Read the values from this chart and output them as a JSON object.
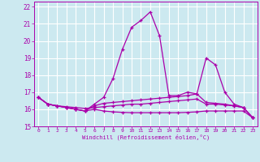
{
  "xlabel": "Windchill (Refroidissement éolien,°C)",
  "xlim": [
    -0.5,
    23.5
  ],
  "ylim": [
    15,
    22.3
  ],
  "xticks": [
    0,
    1,
    2,
    3,
    4,
    5,
    6,
    7,
    8,
    9,
    10,
    11,
    12,
    13,
    14,
    15,
    16,
    17,
    18,
    19,
    20,
    21,
    22,
    23
  ],
  "yticks": [
    15,
    16,
    17,
    18,
    19,
    20,
    21,
    22
  ],
  "bg_color": "#cce9f0",
  "grid_color": "#ffffff",
  "line_color": "#aa00aa",
  "lines": [
    {
      "x": [
        0,
        1,
        2,
        3,
        4,
        5,
        6,
        7,
        8,
        9,
        10,
        11,
        12,
        13,
        14,
        15,
        16,
        17,
        18,
        19,
        20,
        21,
        22,
        23
      ],
      "y": [
        16.7,
        16.3,
        16.2,
        16.1,
        16.0,
        15.9,
        16.3,
        16.7,
        17.8,
        19.5,
        20.8,
        21.2,
        21.7,
        20.3,
        16.8,
        16.8,
        17.0,
        16.9,
        19.0,
        18.6,
        17.0,
        16.3,
        16.1,
        15.5
      ]
    },
    {
      "x": [
        0,
        1,
        2,
        3,
        4,
        5,
        6,
        7,
        8,
        9,
        10,
        11,
        12,
        13,
        14,
        15,
        16,
        17,
        18,
        19,
        20,
        21,
        22,
        23
      ],
      "y": [
        16.7,
        16.3,
        16.2,
        16.1,
        16.0,
        15.9,
        16.2,
        16.35,
        16.4,
        16.45,
        16.5,
        16.55,
        16.6,
        16.65,
        16.7,
        16.75,
        16.8,
        16.9,
        16.4,
        16.35,
        16.3,
        16.2,
        16.1,
        15.5
      ]
    },
    {
      "x": [
        0,
        1,
        2,
        3,
        4,
        5,
        6,
        7,
        8,
        9,
        10,
        11,
        12,
        13,
        14,
        15,
        16,
        17,
        18,
        19,
        20,
        21,
        22,
        23
      ],
      "y": [
        16.7,
        16.3,
        16.2,
        16.15,
        16.1,
        16.05,
        16.1,
        16.15,
        16.2,
        16.25,
        16.3,
        16.3,
        16.35,
        16.4,
        16.45,
        16.5,
        16.55,
        16.6,
        16.3,
        16.3,
        16.25,
        16.2,
        16.1,
        15.5
      ]
    },
    {
      "x": [
        0,
        1,
        2,
        3,
        4,
        5,
        6,
        7,
        8,
        9,
        10,
        11,
        12,
        13,
        14,
        15,
        16,
        17,
        18,
        19,
        20,
        21,
        22,
        23
      ],
      "y": [
        16.7,
        16.3,
        16.2,
        16.1,
        16.0,
        15.9,
        16.0,
        15.9,
        15.85,
        15.82,
        15.8,
        15.8,
        15.8,
        15.8,
        15.8,
        15.8,
        15.82,
        15.85,
        15.9,
        15.9,
        15.9,
        15.9,
        15.9,
        15.5
      ]
    }
  ]
}
